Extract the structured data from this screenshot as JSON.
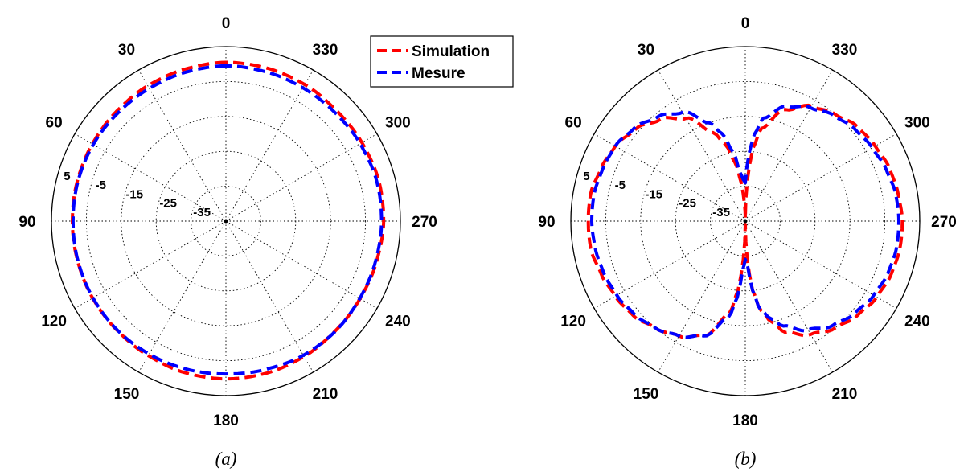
{
  "chart_data": [
    {
      "type": "polar-line",
      "caption": "(a)",
      "angle_ticks": [
        "0",
        "30",
        "60",
        "90",
        "120",
        "150",
        "180",
        "210",
        "240",
        "270",
        "300",
        "330"
      ],
      "angle_direction": "counterclockwise",
      "radial_ticks": [
        "5",
        "-5",
        "-15",
        "-25",
        "-35"
      ],
      "r_range": [
        -45,
        5
      ],
      "grid": true,
      "legend": {
        "placement": "top-right",
        "entries": [
          "Simulation",
          "Mesure"
        ]
      },
      "theta": [
        0,
        15,
        30,
        45,
        60,
        75,
        90,
        105,
        120,
        135,
        150,
        165,
        180,
        195,
        210,
        225,
        240,
        255,
        270,
        285,
        300,
        315,
        330,
        345
      ],
      "series": [
        {
          "name": "Simulation",
          "color": "#ff0000",
          "values": [
            0.5,
            0.1,
            -0.2,
            -0.6,
            -0.8,
            -0.9,
            -1.0,
            -1.0,
            -0.9,
            -0.8,
            -0.5,
            0.0,
            0.2,
            0.1,
            -0.2,
            -0.6,
            -0.6,
            -0.3,
            0.2,
            0.3,
            0.0,
            -0.2,
            0.2,
            0.4
          ]
        },
        {
          "name": "Mesure",
          "color": "#0000ff",
          "values": [
            -0.5,
            -0.8,
            -1.1,
            -1.2,
            -1.1,
            -1.1,
            -1.2,
            -1.1,
            -1.0,
            -0.9,
            -1.0,
            -1.1,
            -1.2,
            -1.0,
            -0.6,
            -0.5,
            -0.7,
            -0.6,
            -0.4,
            -0.3,
            -0.6,
            -0.9,
            -0.9,
            -0.7
          ]
        }
      ]
    },
    {
      "type": "polar-line",
      "caption": "(b)",
      "angle_ticks": [
        "0",
        "30",
        "60",
        "90",
        "120",
        "150",
        "180",
        "210",
        "240",
        "270",
        "300",
        "330"
      ],
      "angle_direction": "counterclockwise",
      "radial_ticks": [
        "5",
        "-5",
        "-15",
        "-25",
        "-35"
      ],
      "r_range": [
        -45,
        5
      ],
      "grid": true,
      "theta": [
        0,
        3,
        6,
        10,
        15,
        20,
        30,
        40,
        50,
        60,
        70,
        80,
        90,
        100,
        110,
        120,
        130,
        140,
        150,
        160,
        170,
        174,
        177,
        180,
        183,
        186,
        190,
        195,
        200,
        210,
        220,
        230,
        240,
        250,
        260,
        270,
        280,
        290,
        300,
        310,
        320,
        330,
        340,
        350,
        354,
        357
      ],
      "series": [
        {
          "name": "Simulation",
          "color": "#ff0000",
          "values": [
            -44,
            -40,
            -34,
            -28,
            -22,
            -18,
            -11,
            -7,
            -4,
            -2,
            -1,
            0,
            0,
            0,
            -1,
            -2,
            -3,
            -5,
            -7,
            -10,
            -18,
            -25,
            -34,
            -44,
            -34,
            -25,
            -19,
            -15,
            -11,
            -7.5,
            -5,
            -3,
            -1.5,
            -0.5,
            0,
            0,
            -0.5,
            -1,
            -2,
            -3,
            -5,
            -7,
            -11,
            -18,
            -24,
            -33
          ]
        },
        {
          "name": "Mesure",
          "color": "#0000ff",
          "values": [
            -34,
            -33,
            -31,
            -25,
            -19,
            -15,
            -9,
            -6,
            -3.5,
            -2,
            -1.5,
            -1,
            -1,
            -1.3,
            -1.8,
            -2.5,
            -3.5,
            -5,
            -7,
            -10,
            -17,
            -23,
            -31,
            -34,
            -32,
            -25,
            -19,
            -16,
            -13,
            -9,
            -6,
            -4,
            -2.5,
            -1.5,
            -1,
            -1,
            -1.2,
            -2,
            -3,
            -4,
            -5.5,
            -7.5,
            -10,
            -15,
            -20,
            -26
          ]
        }
      ]
    }
  ]
}
